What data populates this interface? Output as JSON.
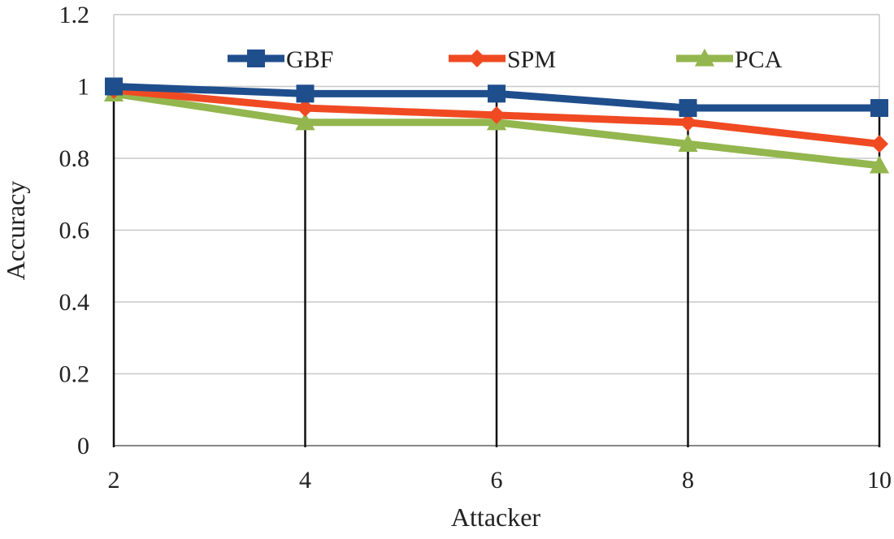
{
  "chart_data": {
    "type": "line",
    "title": "",
    "xlabel": "Attacker",
    "ylabel": "Accuracy",
    "x": [
      2,
      4,
      6,
      8,
      10
    ],
    "x_tick_labels": [
      "2",
      "4",
      "6",
      "8",
      "10"
    ],
    "y_tick_labels": [
      "0",
      "0.2",
      "0.4",
      "0.6",
      "0.8",
      "1",
      "1.2"
    ],
    "y_ticks": [
      0,
      0.2,
      0.4,
      0.6,
      0.8,
      1.0,
      1.2
    ],
    "ylim": [
      0,
      1.2
    ],
    "grid": "horizontal",
    "legend_position": "top",
    "series": [
      {
        "name": "GBF",
        "values": [
          1.0,
          0.98,
          0.98,
          0.94,
          0.94
        ],
        "color": "#1f4e8c",
        "marker": "square"
      },
      {
        "name": "SPM",
        "values": [
          0.99,
          0.94,
          0.92,
          0.9,
          0.84
        ],
        "color": "#f04a23",
        "marker": "diamond"
      },
      {
        "name": "PCA",
        "values": [
          0.98,
          0.9,
          0.9,
          0.84,
          0.78
        ],
        "color": "#93b64e",
        "marker": "triangle"
      }
    ]
  }
}
